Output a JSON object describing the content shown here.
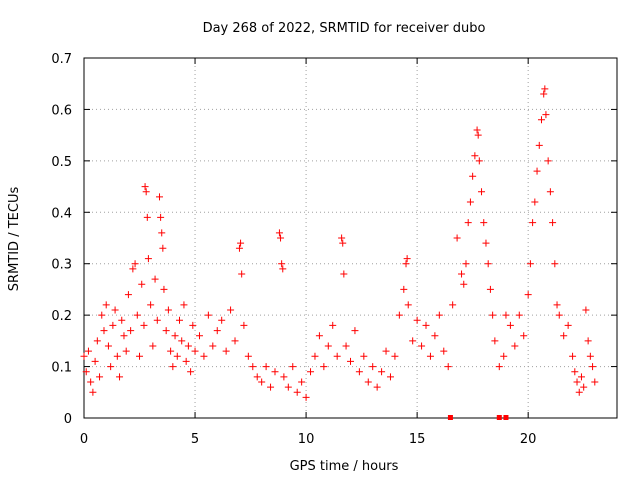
{
  "chart_data": {
    "type": "scatter",
    "title": "Day 268 of 2022, SRMTID for receiver dubo",
    "xlabel": "GPS time / hours",
    "ylabel": "SRMTID / TECUs",
    "xlim": [
      0,
      24
    ],
    "ylim": [
      0,
      0.7
    ],
    "xticks": [
      0,
      5,
      10,
      15,
      20
    ],
    "yticks": [
      0,
      0.1,
      0.2,
      0.3,
      0.4,
      0.5,
      0.6,
      0.7
    ],
    "xtick_labels": [
      "0",
      "5",
      "10",
      "15",
      "20"
    ],
    "ytick_labels": [
      "0",
      "0.1",
      "0.2",
      "0.3",
      "0.4",
      "0.5",
      "0.6",
      "0.7"
    ],
    "grid": true,
    "marker": "+",
    "color": "#ff0000",
    "series": [
      {
        "name": "SRMTID",
        "points": [
          [
            0.0,
            0.12
          ],
          [
            0.1,
            0.09
          ],
          [
            0.2,
            0.13
          ],
          [
            0.3,
            0.07
          ],
          [
            0.4,
            0.05
          ],
          [
            0.5,
            0.11
          ],
          [
            0.6,
            0.15
          ],
          [
            0.7,
            0.08
          ],
          [
            0.8,
            0.2
          ],
          [
            0.9,
            0.17
          ],
          [
            1.0,
            0.22
          ],
          [
            1.1,
            0.14
          ],
          [
            1.2,
            0.1
          ],
          [
            1.3,
            0.18
          ],
          [
            1.4,
            0.21
          ],
          [
            1.5,
            0.12
          ],
          [
            1.6,
            0.08
          ],
          [
            1.7,
            0.19
          ],
          [
            1.8,
            0.16
          ],
          [
            1.9,
            0.13
          ],
          [
            2.0,
            0.24
          ],
          [
            2.1,
            0.17
          ],
          [
            2.2,
            0.29
          ],
          [
            2.3,
            0.3
          ],
          [
            2.4,
            0.2
          ],
          [
            2.5,
            0.12
          ],
          [
            2.6,
            0.26
          ],
          [
            2.7,
            0.18
          ],
          [
            2.75,
            0.45
          ],
          [
            2.8,
            0.44
          ],
          [
            2.85,
            0.39
          ],
          [
            2.9,
            0.31
          ],
          [
            3.0,
            0.22
          ],
          [
            3.1,
            0.14
          ],
          [
            3.2,
            0.27
          ],
          [
            3.3,
            0.19
          ],
          [
            3.4,
            0.43
          ],
          [
            3.45,
            0.39
          ],
          [
            3.5,
            0.36
          ],
          [
            3.55,
            0.33
          ],
          [
            3.6,
            0.25
          ],
          [
            3.7,
            0.17
          ],
          [
            3.8,
            0.21
          ],
          [
            3.9,
            0.13
          ],
          [
            4.0,
            0.1
          ],
          [
            4.1,
            0.16
          ],
          [
            4.2,
            0.12
          ],
          [
            4.3,
            0.19
          ],
          [
            4.4,
            0.15
          ],
          [
            4.5,
            0.22
          ],
          [
            4.6,
            0.11
          ],
          [
            4.7,
            0.14
          ],
          [
            4.8,
            0.09
          ],
          [
            4.9,
            0.18
          ],
          [
            5.0,
            0.13
          ],
          [
            5.2,
            0.16
          ],
          [
            5.4,
            0.12
          ],
          [
            5.6,
            0.2
          ],
          [
            5.8,
            0.14
          ],
          [
            6.0,
            0.17
          ],
          [
            6.2,
            0.19
          ],
          [
            6.4,
            0.13
          ],
          [
            6.6,
            0.21
          ],
          [
            6.8,
            0.15
          ],
          [
            7.0,
            0.33
          ],
          [
            7.05,
            0.34
          ],
          [
            7.1,
            0.28
          ],
          [
            7.2,
            0.18
          ],
          [
            7.4,
            0.12
          ],
          [
            7.6,
            0.1
          ],
          [
            7.8,
            0.08
          ],
          [
            8.0,
            0.07
          ],
          [
            8.2,
            0.1
          ],
          [
            8.4,
            0.06
          ],
          [
            8.6,
            0.09
          ],
          [
            8.8,
            0.36
          ],
          [
            8.85,
            0.35
          ],
          [
            8.9,
            0.3
          ],
          [
            8.95,
            0.29
          ],
          [
            9.0,
            0.08
          ],
          [
            9.2,
            0.06
          ],
          [
            9.4,
            0.1
          ],
          [
            9.6,
            0.05
          ],
          [
            9.8,
            0.07
          ],
          [
            10.0,
            0.04
          ],
          [
            10.2,
            0.09
          ],
          [
            10.4,
            0.12
          ],
          [
            10.6,
            0.16
          ],
          [
            10.8,
            0.1
          ],
          [
            11.0,
            0.14
          ],
          [
            11.2,
            0.18
          ],
          [
            11.4,
            0.12
          ],
          [
            11.6,
            0.35
          ],
          [
            11.65,
            0.34
          ],
          [
            11.7,
            0.28
          ],
          [
            11.8,
            0.14
          ],
          [
            12.0,
            0.11
          ],
          [
            12.2,
            0.17
          ],
          [
            12.4,
            0.09
          ],
          [
            12.6,
            0.12
          ],
          [
            12.8,
            0.07
          ],
          [
            13.0,
            0.1
          ],
          [
            13.2,
            0.06
          ],
          [
            13.4,
            0.09
          ],
          [
            13.6,
            0.13
          ],
          [
            13.8,
            0.08
          ],
          [
            14.0,
            0.12
          ],
          [
            14.2,
            0.2
          ],
          [
            14.4,
            0.25
          ],
          [
            14.5,
            0.3
          ],
          [
            14.55,
            0.31
          ],
          [
            14.6,
            0.22
          ],
          [
            14.8,
            0.15
          ],
          [
            15.0,
            0.19
          ],
          [
            15.2,
            0.14
          ],
          [
            15.4,
            0.18
          ],
          [
            15.6,
            0.12
          ],
          [
            15.8,
            0.16
          ],
          [
            16.0,
            0.2
          ],
          [
            16.2,
            0.13
          ],
          [
            16.4,
            0.1
          ],
          [
            16.6,
            0.22
          ],
          [
            16.8,
            0.35
          ],
          [
            17.0,
            0.28
          ],
          [
            17.1,
            0.26
          ],
          [
            17.2,
            0.3
          ],
          [
            17.3,
            0.38
          ],
          [
            17.4,
            0.42
          ],
          [
            17.5,
            0.47
          ],
          [
            17.6,
            0.51
          ],
          [
            17.7,
            0.56
          ],
          [
            17.75,
            0.55
          ],
          [
            17.8,
            0.5
          ],
          [
            17.9,
            0.44
          ],
          [
            18.0,
            0.38
          ],
          [
            18.1,
            0.34
          ],
          [
            18.2,
            0.3
          ],
          [
            18.3,
            0.25
          ],
          [
            18.4,
            0.2
          ],
          [
            18.5,
            0.15
          ],
          [
            18.7,
            0.1
          ],
          [
            18.9,
            0.12
          ],
          [
            19.0,
            0.2
          ],
          [
            19.2,
            0.18
          ],
          [
            19.4,
            0.14
          ],
          [
            19.6,
            0.2
          ],
          [
            19.8,
            0.16
          ],
          [
            20.0,
            0.24
          ],
          [
            20.1,
            0.3
          ],
          [
            20.2,
            0.38
          ],
          [
            20.3,
            0.42
          ],
          [
            20.4,
            0.48
          ],
          [
            20.5,
            0.53
          ],
          [
            20.6,
            0.58
          ],
          [
            20.7,
            0.63
          ],
          [
            20.75,
            0.64
          ],
          [
            20.8,
            0.59
          ],
          [
            20.9,
            0.5
          ],
          [
            21.0,
            0.44
          ],
          [
            21.1,
            0.38
          ],
          [
            21.2,
            0.3
          ],
          [
            21.3,
            0.22
          ],
          [
            21.4,
            0.2
          ],
          [
            21.6,
            0.16
          ],
          [
            21.8,
            0.18
          ],
          [
            22.0,
            0.12
          ],
          [
            22.1,
            0.09
          ],
          [
            22.2,
            0.07
          ],
          [
            22.3,
            0.05
          ],
          [
            22.4,
            0.08
          ],
          [
            22.5,
            0.06
          ],
          [
            22.6,
            0.21
          ],
          [
            22.7,
            0.15
          ],
          [
            22.8,
            0.12
          ],
          [
            22.9,
            0.1
          ],
          [
            23.0,
            0.07
          ]
        ]
      }
    ],
    "gap_markers_x": [
      16.5,
      18.7,
      19.0
    ]
  }
}
